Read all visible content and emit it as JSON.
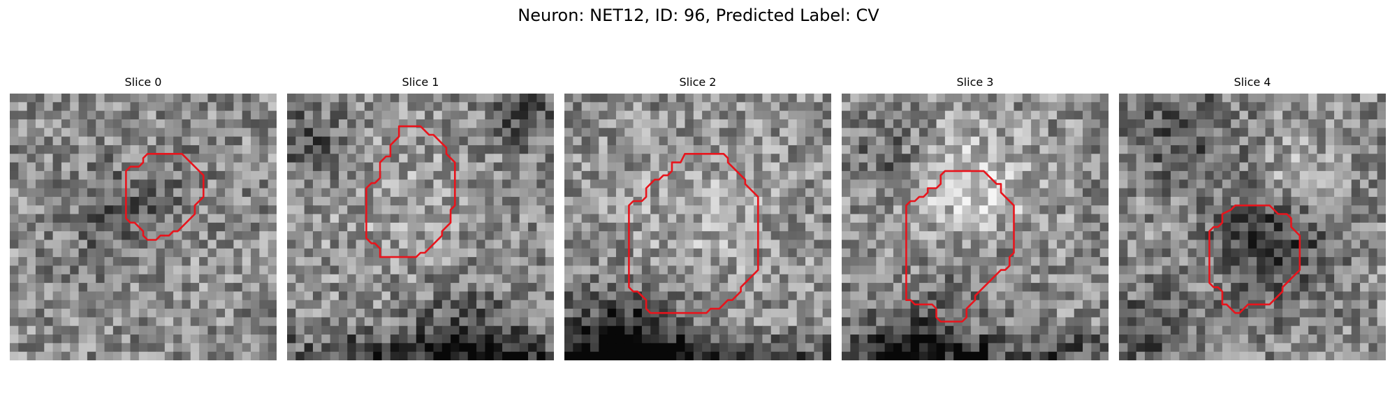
{
  "figure": {
    "title": "Neuron: NET12, ID: 96, Predicted Label: CV",
    "contour_color": "#e8141c"
  },
  "panels": [
    {
      "title": "Slice 0",
      "brightness": "mid-gray noisy",
      "contour_style": "small irregular blob"
    },
    {
      "title": "Slice 1",
      "brightness": "mid-gray noisy",
      "contour_style": "large rounded shape"
    },
    {
      "title": "Slice 2",
      "brightness": "mid-gray noisy",
      "contour_style": "large octagonal shape"
    },
    {
      "title": "Slice 3",
      "brightness": "mid-gray noisy",
      "contour_style": "tall rounded shape"
    },
    {
      "title": "Slice 4",
      "brightness": "mid-gray noisy",
      "contour_style": "small dark blob"
    }
  ]
}
